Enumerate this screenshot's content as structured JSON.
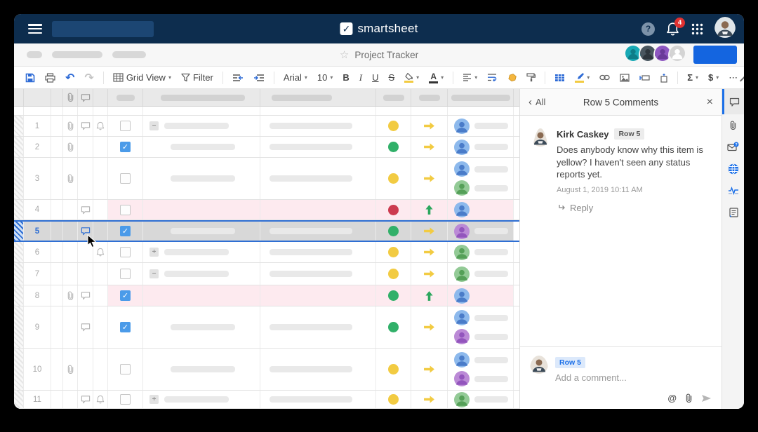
{
  "topbar": {
    "logo_text": "smartsheet",
    "help_label": "?",
    "notification_count": "4"
  },
  "titlebar": {
    "star_icon": "☆",
    "title": "Project Tracker",
    "share_button_label": ""
  },
  "toolbar": {
    "view_label": "Grid View",
    "filter_label": "Filter",
    "font_family": "Arial",
    "font_size": "10",
    "bold_label": "B",
    "italic_label": "I",
    "underline_label": "U",
    "strikethrough_label": "S",
    "text_color_label": "A",
    "sum_label": "Σ",
    "currency_label": "$",
    "more_label": "⋯"
  },
  "grid": {
    "rows": [
      {
        "num": "1",
        "clip": true,
        "comment": true,
        "bell": true,
        "checked": false,
        "expand": "minus",
        "task1": true,
        "task2": true,
        "status": "yellow",
        "arrow": "right",
        "people": [
          {
            "color": "blue",
            "pill": true
          }
        ]
      },
      {
        "num": "2",
        "clip": true,
        "checked": true,
        "indent": true,
        "task1": true,
        "task2": true,
        "status": "green",
        "arrow": "right",
        "people": [
          {
            "color": "blue",
            "pill": true
          }
        ]
      },
      {
        "num": "3",
        "clip": true,
        "checked": false,
        "indent": true,
        "task1": true,
        "task2": true,
        "status": "yellow",
        "arrow": "right",
        "people": [
          {
            "color": "blue",
            "pill": true
          },
          {
            "color": "green",
            "pill": true
          }
        ],
        "tall": true
      },
      {
        "num": "4",
        "comment": true,
        "checked": false,
        "status": "red",
        "arrow": "up",
        "people": [
          {
            "color": "blue",
            "pill": false
          }
        ],
        "pink": true
      },
      {
        "num": "5",
        "comment": true,
        "checked": true,
        "indent": true,
        "task1": true,
        "task2": true,
        "status": "green",
        "arrow": "right",
        "people": [
          {
            "color": "purple",
            "pill": true
          }
        ],
        "selected": true
      },
      {
        "num": "6",
        "bell": true,
        "checked": false,
        "expand": "plus",
        "task1": true,
        "task2": true,
        "status": "yellow",
        "arrow": "right",
        "people": [
          {
            "color": "green",
            "pill": true
          }
        ]
      },
      {
        "num": "7",
        "checked": false,
        "expand": "minus",
        "task1": true,
        "task2": true,
        "status": "yellow",
        "arrow": "right",
        "people": [
          {
            "color": "green",
            "pill": true
          }
        ]
      },
      {
        "num": "8",
        "clip": true,
        "comment": true,
        "checked": true,
        "status": "green",
        "arrow": "up",
        "people": [
          {
            "color": "blue",
            "pill": false
          }
        ],
        "pink": true
      },
      {
        "num": "9",
        "comment": true,
        "checked": true,
        "indent": true,
        "task1": true,
        "task2": true,
        "status": "green",
        "arrow": "right",
        "people": [
          {
            "color": "blue",
            "pill": true
          },
          {
            "color": "purple",
            "pill": true
          }
        ],
        "tall": true
      },
      {
        "num": "10",
        "clip": true,
        "checked": false,
        "indent": true,
        "task1": true,
        "task2": true,
        "status": "yellow",
        "arrow": "right",
        "people": [
          {
            "color": "blue",
            "pill": true
          },
          {
            "color": "purple",
            "pill": true
          }
        ],
        "tall": true
      },
      {
        "num": "11",
        "comment": true,
        "bell": true,
        "checked": false,
        "expand": "plus",
        "task1": true,
        "task2": true,
        "status": "yellow",
        "arrow": "right",
        "people": [
          {
            "color": "green",
            "pill": true
          }
        ]
      }
    ]
  },
  "panel": {
    "back_label": "All",
    "title": "Row 5 Comments",
    "close_icon": "×",
    "comment": {
      "author": "Kirk Caskey",
      "row_badge": "Row 5",
      "text": "Does anybody know why this item is yellow? I haven't seen any status reports yet.",
      "timestamp": "August 1, 2019 10:11 AM",
      "reply_label": "Reply"
    },
    "composer": {
      "row_badge": "Row 5",
      "placeholder": "Add a comment...",
      "at_label": "@"
    }
  },
  "rail": {
    "items": [
      "comments-icon",
      "attachments-icon",
      "update-requests-icon",
      "publish-icon",
      "activity-log-icon",
      "summary-icon"
    ]
  },
  "colors": {
    "navy": "#0d2d4e",
    "accent_blue": "#156de1",
    "badge_red": "#e03131",
    "status_yellow": "#f2cb42",
    "status_green": "#31b069",
    "status_red": "#cc3a4e",
    "arrow_green": "#2ca75e",
    "row_pink": "#fdeaef",
    "selected_border": "#2f6fd3",
    "avatar_blue": "#8db9ec",
    "avatar_green": "#93ca96",
    "avatar_purple": "#bb8ad6"
  }
}
